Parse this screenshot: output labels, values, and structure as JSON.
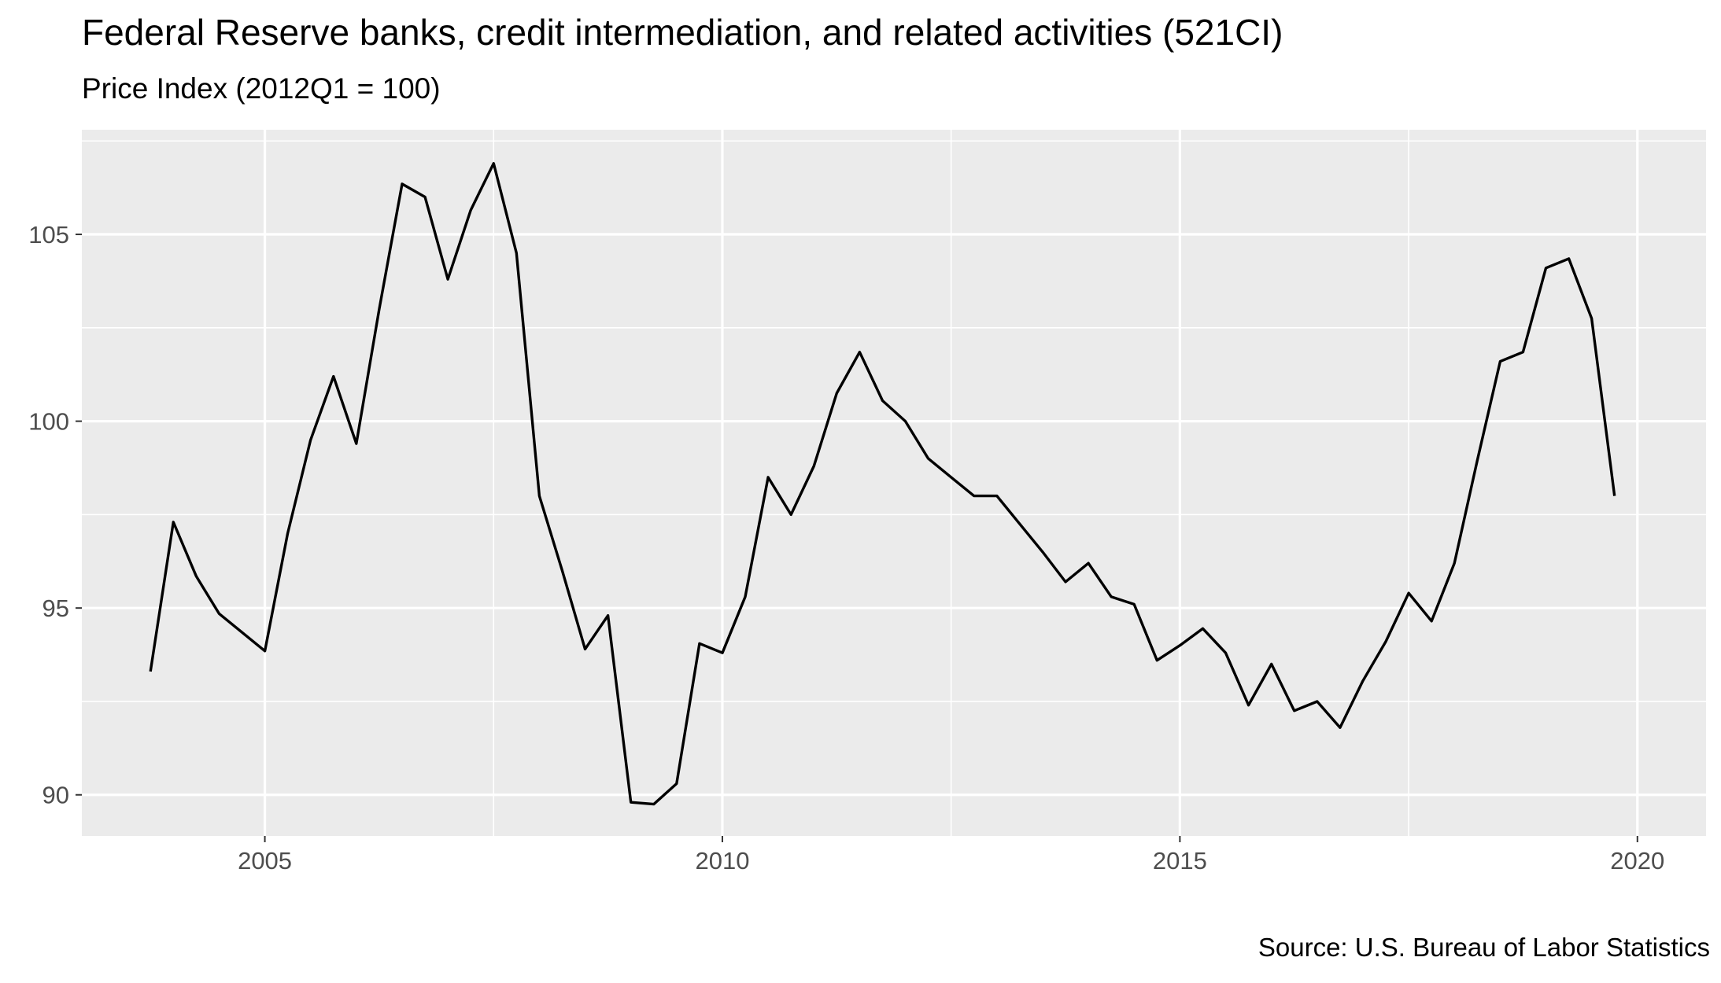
{
  "chart_data": {
    "type": "line",
    "title": "Federal Reserve banks, credit intermediation, and related activities (521CI)",
    "subtitle": "Price Index (2012Q1 = 100)",
    "caption": "Source: U.S. Bureau of Labor Statistics",
    "xlabel": "",
    "ylabel": "",
    "xlim": [
      2003.0,
      2020.75
    ],
    "ylim": [
      88.9,
      107.8
    ],
    "x_ticks": [
      2005,
      2010,
      2015,
      2020
    ],
    "y_ticks": [
      90,
      95,
      100,
      105
    ],
    "grid": true,
    "legend": "none",
    "colors": {
      "panel": "#EBEBEB",
      "grid": "#FFFFFF",
      "line": "#000000",
      "tick_text": "#4D4D4D"
    },
    "series": [
      {
        "x": [
          2003.75,
          2004.0,
          2004.25,
          2004.5,
          2004.75,
          2005.0,
          2005.25,
          2005.5,
          2005.75,
          2006.0,
          2006.25,
          2006.5,
          2006.75,
          2007.0,
          2007.25,
          2007.5,
          2007.75,
          2008.0,
          2008.25,
          2008.5,
          2008.75,
          2009.0,
          2009.25,
          2009.5,
          2009.75,
          2010.0,
          2010.25,
          2010.5,
          2010.75,
          2011.0,
          2011.25,
          2011.5,
          2011.75,
          2012.0,
          2012.25,
          2012.5,
          2012.75,
          2013.0,
          2013.25,
          2013.5,
          2013.75,
          2014.0,
          2014.25,
          2014.5,
          2014.75,
          2015.0,
          2015.25,
          2015.5,
          2015.75,
          2016.0,
          2016.25,
          2016.5,
          2016.75,
          2017.0,
          2017.25,
          2017.5,
          2017.75,
          2018.0,
          2018.25,
          2018.5,
          2018.75,
          2019.0,
          2019.25,
          2019.5,
          2019.75
        ],
        "values": [
          93.3,
          97.3,
          95.85,
          94.85,
          94.35,
          93.85,
          97.0,
          99.5,
          101.2,
          99.4,
          103.0,
          106.35,
          106.0,
          103.8,
          105.65,
          106.9,
          104.5,
          98.0,
          96.0,
          93.9,
          94.8,
          89.8,
          89.75,
          90.3,
          94.05,
          93.8,
          95.3,
          98.5,
          97.5,
          98.8,
          100.75,
          101.85,
          100.55,
          100.0,
          99.0,
          98.5,
          98.0,
          98.0,
          97.25,
          96.5,
          95.7,
          96.2,
          95.3,
          95.1,
          93.6,
          94.0,
          94.45,
          93.8,
          92.4,
          93.5,
          92.25,
          92.5,
          91.8,
          93.05,
          94.1,
          95.4,
          94.65,
          96.2,
          98.95,
          101.6,
          101.85,
          104.1,
          104.35,
          102.75,
          98.0
        ]
      }
    ]
  }
}
